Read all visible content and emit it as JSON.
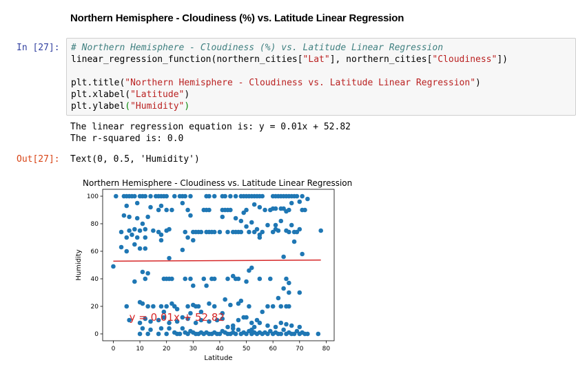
{
  "markdown": {
    "heading": "Northern Hemisphere - Cloudiness (%) vs. Latitude Linear Regression"
  },
  "cell": {
    "in_prompt": "In [27]:",
    "out_prompt": "Out[27]:",
    "code": {
      "l1_comment": "# Northern Hemisphere - Cloudiness (%) vs. Latitude Linear Regression",
      "l2_a": "linear_regression_function(northern_cities[",
      "l2_s1": "\"Lat\"",
      "l2_b": "], northern_cities[",
      "l2_s2": "\"Cloudiness\"",
      "l2_c": "])",
      "l3_a": "plt.title(",
      "l3_s": "\"Northern Hemisphere - Cloudiness vs. Latitude Linear Regression\"",
      "l3_b": ")",
      "l4_a": "plt.xlabel(",
      "l4_s": "\"Latitude\"",
      "l4_b": ")",
      "l5_a": "plt.ylabel",
      "l5_p1": "(",
      "l5_s": "\"Humidity\"",
      "l5_p2": ")"
    },
    "stdout": {
      "line1": "The linear regression equation is: y = 0.01x + 52.82",
      "line2": "The r-squared is: 0.0"
    },
    "result": "Text(0, 0.5, 'Humidity')"
  },
  "chart_data": {
    "type": "scatter",
    "title": "Northern Hemisphere - Cloudiness vs. Latitude Linear Regression",
    "xlabel": "Latitude",
    "ylabel": "Humidity",
    "xlim": [
      -4,
      83
    ],
    "ylim": [
      -5,
      105
    ],
    "xticks": [
      0,
      10,
      20,
      30,
      40,
      50,
      60,
      70,
      80
    ],
    "yticks": [
      0,
      20,
      40,
      60,
      80,
      100
    ],
    "point_color": "#1f77b4",
    "line_color": "#d62728",
    "annotation": {
      "text": "y = 0.01x + 52.82",
      "x": 6,
      "y": 12
    },
    "regression": {
      "slope": 0.01,
      "intercept": 52.82,
      "x_range": [
        0,
        78
      ]
    },
    "points": [
      [
        1,
        100
      ],
      [
        4,
        100
      ],
      [
        5,
        100
      ],
      [
        6,
        100
      ],
      [
        7,
        100
      ],
      [
        8,
        100
      ],
      [
        10,
        100
      ],
      [
        11,
        100
      ],
      [
        12,
        100
      ],
      [
        14,
        100
      ],
      [
        16,
        100
      ],
      [
        17,
        100
      ],
      [
        18,
        100
      ],
      [
        19,
        100
      ],
      [
        20,
        100
      ],
      [
        23,
        100
      ],
      [
        25,
        100
      ],
      [
        26,
        100
      ],
      [
        27,
        100
      ],
      [
        29,
        100
      ],
      [
        35,
        100
      ],
      [
        36,
        100
      ],
      [
        38,
        100
      ],
      [
        41,
        100
      ],
      [
        42,
        100
      ],
      [
        44,
        100
      ],
      [
        46,
        100
      ],
      [
        48,
        100
      ],
      [
        49,
        100
      ],
      [
        50,
        100
      ],
      [
        51,
        100
      ],
      [
        52,
        100
      ],
      [
        53,
        100
      ],
      [
        54,
        100
      ],
      [
        55,
        100
      ],
      [
        56,
        100
      ],
      [
        60,
        100
      ],
      [
        61,
        100
      ],
      [
        62,
        100
      ],
      [
        63,
        100
      ],
      [
        64,
        100
      ],
      [
        65,
        100
      ],
      [
        66,
        100
      ],
      [
        67,
        100
      ],
      [
        68,
        100
      ],
      [
        69,
        100
      ],
      [
        71,
        100
      ],
      [
        73,
        98
      ],
      [
        5,
        93
      ],
      [
        9,
        95
      ],
      [
        14,
        92
      ],
      [
        17,
        90
      ],
      [
        18,
        93
      ],
      [
        20,
        90
      ],
      [
        22,
        90
      ],
      [
        26,
        95
      ],
      [
        28,
        90
      ],
      [
        34,
        90
      ],
      [
        35,
        90
      ],
      [
        36,
        90
      ],
      [
        41,
        90
      ],
      [
        42,
        90
      ],
      [
        43,
        90
      ],
      [
        44,
        90
      ],
      [
        49,
        88
      ],
      [
        50,
        90
      ],
      [
        53,
        94
      ],
      [
        55,
        92
      ],
      [
        57,
        90
      ],
      [
        59,
        90
      ],
      [
        60,
        91
      ],
      [
        61,
        91
      ],
      [
        63,
        91
      ],
      [
        64,
        91
      ],
      [
        65,
        89
      ],
      [
        66,
        90
      ],
      [
        67,
        95
      ],
      [
        70,
        96
      ],
      [
        71,
        90
      ],
      [
        72,
        90
      ],
      [
        4,
        86
      ],
      [
        6,
        85
      ],
      [
        9,
        84
      ],
      [
        11,
        80
      ],
      [
        13,
        85
      ],
      [
        29,
        86
      ],
      [
        41,
        85
      ],
      [
        46,
        84
      ],
      [
        48,
        82
      ],
      [
        50,
        78
      ],
      [
        52,
        81
      ],
      [
        58,
        79
      ],
      [
        61,
        79
      ],
      [
        63,
        82
      ],
      [
        67,
        79
      ],
      [
        3,
        74
      ],
      [
        6,
        75
      ],
      [
        7,
        72
      ],
      [
        8,
        76
      ],
      [
        10,
        75
      ],
      [
        12,
        76
      ],
      [
        15,
        75
      ],
      [
        17,
        74
      ],
      [
        18,
        72
      ],
      [
        20,
        75
      ],
      [
        21,
        76
      ],
      [
        27,
        74
      ],
      [
        30,
        74
      ],
      [
        31,
        74
      ],
      [
        32,
        74
      ],
      [
        33,
        74
      ],
      [
        35,
        74
      ],
      [
        36,
        74
      ],
      [
        37,
        74
      ],
      [
        38,
        74
      ],
      [
        40,
        74
      ],
      [
        43,
        74
      ],
      [
        45,
        74
      ],
      [
        46,
        74
      ],
      [
        47,
        74
      ],
      [
        48,
        74
      ],
      [
        51,
        74
      ],
      [
        53,
        74
      ],
      [
        54,
        76
      ],
      [
        55,
        72
      ],
      [
        56,
        74
      ],
      [
        60,
        74
      ],
      [
        61,
        76
      ],
      [
        62,
        75
      ],
      [
        65,
        75
      ],
      [
        66,
        74
      ],
      [
        68,
        74
      ],
      [
        69,
        74
      ],
      [
        70,
        76
      ],
      [
        78,
        75
      ],
      [
        5,
        70
      ],
      [
        8,
        65
      ],
      [
        9,
        70
      ],
      [
        12,
        70
      ],
      [
        18,
        68
      ],
      [
        28,
        70
      ],
      [
        30,
        68
      ],
      [
        55,
        70
      ],
      [
        68,
        67
      ],
      [
        3,
        63
      ],
      [
        5,
        60
      ],
      [
        10,
        62
      ],
      [
        12,
        62
      ],
      [
        26,
        61
      ],
      [
        21,
        55
      ],
      [
        64,
        56
      ],
      [
        71,
        58
      ],
      [
        0,
        49
      ],
      [
        11,
        45
      ],
      [
        13,
        44
      ],
      [
        52,
        48
      ],
      [
        51,
        46
      ],
      [
        45,
        42
      ],
      [
        46,
        40
      ],
      [
        8,
        38
      ],
      [
        12,
        40
      ],
      [
        19,
        40
      ],
      [
        20,
        40
      ],
      [
        21,
        40
      ],
      [
        22,
        40
      ],
      [
        27,
        40
      ],
      [
        29,
        40
      ],
      [
        34,
        40
      ],
      [
        37,
        40
      ],
      [
        38,
        40
      ],
      [
        43,
        40
      ],
      [
        47,
        40
      ],
      [
        50,
        38
      ],
      [
        55,
        40
      ],
      [
        59,
        40
      ],
      [
        65,
        40
      ],
      [
        66,
        37
      ],
      [
        64,
        33
      ],
      [
        66,
        30
      ],
      [
        70,
        30
      ],
      [
        30,
        35
      ],
      [
        35,
        35
      ],
      [
        10,
        23
      ],
      [
        11,
        22
      ],
      [
        13,
        20
      ],
      [
        15,
        20
      ],
      [
        18,
        20
      ],
      [
        20,
        20
      ],
      [
        22,
        22
      ],
      [
        23,
        20
      ],
      [
        28,
        20
      ],
      [
        30,
        21
      ],
      [
        31,
        20
      ],
      [
        32,
        20
      ],
      [
        36,
        22
      ],
      [
        38,
        20
      ],
      [
        42,
        25
      ],
      [
        44,
        21
      ],
      [
        47,
        22
      ],
      [
        48,
        24
      ],
      [
        51,
        20
      ],
      [
        56,
        16
      ],
      [
        58,
        20
      ],
      [
        60,
        20
      ],
      [
        62,
        26
      ],
      [
        63,
        20
      ],
      [
        65,
        20
      ],
      [
        66,
        20
      ],
      [
        5,
        20
      ],
      [
        19,
        16
      ],
      [
        24,
        18
      ],
      [
        29,
        15
      ],
      [
        33,
        16
      ],
      [
        41,
        15
      ],
      [
        49,
        12
      ],
      [
        54,
        10
      ],
      [
        6,
        10
      ],
      [
        10,
        8
      ],
      [
        12,
        11
      ],
      [
        14,
        9
      ],
      [
        17,
        10
      ],
      [
        19,
        12
      ],
      [
        21,
        8
      ],
      [
        24,
        9
      ],
      [
        26,
        12
      ],
      [
        28,
        11
      ],
      [
        31,
        8
      ],
      [
        33,
        10
      ],
      [
        36,
        9
      ],
      [
        39,
        10
      ],
      [
        41,
        11
      ],
      [
        43,
        5
      ],
      [
        45,
        6
      ],
      [
        47,
        10
      ],
      [
        50,
        12
      ],
      [
        52,
        8
      ],
      [
        53,
        5
      ],
      [
        55,
        8
      ],
      [
        58,
        6
      ],
      [
        61,
        5
      ],
      [
        63,
        8
      ],
      [
        65,
        7
      ],
      [
        67,
        6
      ],
      [
        70,
        5
      ],
      [
        10,
        0
      ],
      [
        11,
        4
      ],
      [
        13,
        0
      ],
      [
        14,
        3
      ],
      [
        17,
        0
      ],
      [
        18,
        4
      ],
      [
        20,
        0
      ],
      [
        21,
        4
      ],
      [
        23,
        1
      ],
      [
        24,
        0
      ],
      [
        25,
        0
      ],
      [
        26,
        4
      ],
      [
        27,
        1
      ],
      [
        28,
        0
      ],
      [
        29,
        2
      ],
      [
        30,
        1
      ],
      [
        31,
        0
      ],
      [
        32,
        0
      ],
      [
        33,
        1
      ],
      [
        34,
        0
      ],
      [
        35,
        1
      ],
      [
        36,
        0
      ],
      [
        37,
        0
      ],
      [
        38,
        1
      ],
      [
        39,
        0
      ],
      [
        40,
        0
      ],
      [
        41,
        2
      ],
      [
        42,
        1
      ],
      [
        43,
        0
      ],
      [
        44,
        0
      ],
      [
        45,
        1
      ],
      [
        46,
        0
      ],
      [
        47,
        3
      ],
      [
        48,
        0
      ],
      [
        49,
        1
      ],
      [
        50,
        0
      ],
      [
        51,
        2
      ],
      [
        52,
        0
      ],
      [
        53,
        1
      ],
      [
        54,
        0
      ],
      [
        55,
        1
      ],
      [
        56,
        0
      ],
      [
        57,
        1
      ],
      [
        58,
        0
      ],
      [
        59,
        2
      ],
      [
        60,
        0
      ],
      [
        61,
        1
      ],
      [
        62,
        0
      ],
      [
        63,
        0
      ],
      [
        64,
        3
      ],
      [
        65,
        0
      ],
      [
        66,
        1
      ],
      [
        67,
        0
      ],
      [
        68,
        0
      ],
      [
        69,
        2
      ],
      [
        70,
        0
      ],
      [
        71,
        1
      ],
      [
        72,
        0
      ],
      [
        73,
        0
      ],
      [
        77,
        0
      ],
      [
        45,
        4
      ],
      [
        52,
        3
      ]
    ]
  }
}
